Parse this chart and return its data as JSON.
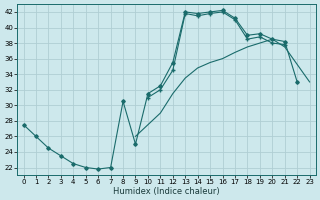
{
  "xlabel": "Humidex (Indice chaleur)",
  "bg_color": "#cde8ec",
  "grid_color": "#b0ced4",
  "line_color": "#1a6b6b",
  "xlim": [
    -0.5,
    23.5
  ],
  "ylim": [
    21.0,
    43.0
  ],
  "xticks": [
    0,
    1,
    2,
    3,
    4,
    5,
    6,
    7,
    8,
    9,
    10,
    11,
    12,
    13,
    14,
    15,
    16,
    17,
    18,
    19,
    20,
    21,
    22,
    23
  ],
  "yticks": [
    22,
    24,
    26,
    28,
    30,
    32,
    34,
    36,
    38,
    40,
    42
  ],
  "line1_x": [
    0,
    1,
    2,
    3,
    4,
    5,
    6,
    7,
    8,
    9,
    10,
    11,
    12,
    13,
    14,
    15,
    16,
    17,
    18,
    19,
    20,
    21,
    22
  ],
  "line1_y": [
    27.5,
    26.0,
    24.5,
    23.5,
    22.5,
    22.0,
    21.8,
    22.0,
    30.5,
    25.0,
    31.5,
    32.5,
    35.5,
    42.0,
    41.8,
    42.0,
    42.2,
    41.2,
    39.0,
    39.2,
    38.5,
    38.2,
    33.0
  ],
  "line2_x": [
    9,
    10,
    11,
    12,
    13,
    14,
    15,
    16,
    17,
    18,
    19,
    20,
    21,
    23
  ],
  "line2_y": [
    26.0,
    27.5,
    29.0,
    31.5,
    33.5,
    34.8,
    35.5,
    36.0,
    36.8,
    37.5,
    38.0,
    38.5,
    37.5,
    33.0
  ],
  "line3_x": [
    10,
    11,
    12,
    13,
    14,
    15,
    16,
    17,
    18,
    19,
    20,
    21
  ],
  "line3_y": [
    31.0,
    32.0,
    34.5,
    41.8,
    41.5,
    41.8,
    42.0,
    41.0,
    38.5,
    38.8,
    38.0,
    37.8
  ]
}
